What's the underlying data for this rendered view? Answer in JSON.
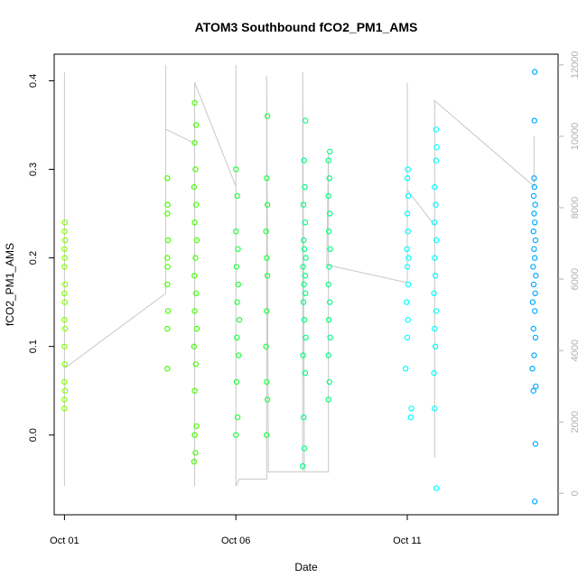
{
  "chart_data": {
    "type": "scatter",
    "title": "ATOM3 Southbound fCO2_PM1_AMS",
    "xlabel": "Date",
    "ylabel": "fCO2_PM1_AMS",
    "x_ticks": [
      {
        "label": "Oct 01",
        "day": 1
      },
      {
        "label": "Oct 06",
        "day": 6
      },
      {
        "label": "Oct 11",
        "day": 11
      }
    ],
    "xlim": [
      0.7,
      15.4
    ],
    "ylim": [
      -0.09,
      0.43
    ],
    "y_ticks": [
      0.0,
      0.1,
      0.2,
      0.3,
      0.4
    ],
    "y_tick_labels": [
      "0.0",
      "0.1",
      "0.2",
      "0.3",
      "0.4"
    ],
    "y2_ticks": [
      0,
      2000,
      4000,
      6000,
      8000,
      10000,
      12000
    ],
    "y2_tick_labels": [
      "0",
      "2000",
      "4000",
      "6000",
      "8000",
      "10000",
      "12000"
    ],
    "y2_lim": [
      -600,
      12300
    ],
    "y2_color": "#b0b0b0",
    "series": [
      {
        "color": "#80ff00",
        "values": [
          {
            "x": 1.0,
            "y": 0.03
          },
          {
            "x": 1.0,
            "y": 0.04
          },
          {
            "x": 1.02,
            "y": 0.05
          },
          {
            "x": 1.0,
            "y": 0.06
          },
          {
            "x": 1.01,
            "y": 0.08
          },
          {
            "x": 1.0,
            "y": 0.1
          },
          {
            "x": 1.02,
            "y": 0.12
          },
          {
            "x": 1.0,
            "y": 0.13
          },
          {
            "x": 1.01,
            "y": 0.15
          },
          {
            "x": 1.0,
            "y": 0.16
          },
          {
            "x": 1.02,
            "y": 0.17
          },
          {
            "x": 1.0,
            "y": 0.19
          },
          {
            "x": 1.01,
            "y": 0.2
          },
          {
            "x": 1.0,
            "y": 0.21
          },
          {
            "x": 1.02,
            "y": 0.22
          },
          {
            "x": 1.0,
            "y": 0.23
          },
          {
            "x": 1.01,
            "y": 0.24
          }
        ]
      },
      {
        "color": "#44ff00",
        "values": [
          {
            "x": 4.0,
            "y": 0.075
          },
          {
            "x": 4.0,
            "y": 0.12
          },
          {
            "x": 4.02,
            "y": 0.14
          },
          {
            "x": 4.0,
            "y": 0.17
          },
          {
            "x": 4.01,
            "y": 0.19
          },
          {
            "x": 4.0,
            "y": 0.2
          },
          {
            "x": 4.02,
            "y": 0.22
          },
          {
            "x": 4.0,
            "y": 0.25
          },
          {
            "x": 4.01,
            "y": 0.26
          },
          {
            "x": 4.0,
            "y": 0.29
          },
          {
            "x": 4.78,
            "y": -0.03
          },
          {
            "x": 4.82,
            "y": -0.02
          },
          {
            "x": 4.8,
            "y": 0.0
          },
          {
            "x": 4.85,
            "y": 0.01
          },
          {
            "x": 4.8,
            "y": 0.05
          },
          {
            "x": 4.83,
            "y": 0.08
          },
          {
            "x": 4.78,
            "y": 0.1
          },
          {
            "x": 4.86,
            "y": 0.12
          },
          {
            "x": 4.8,
            "y": 0.14
          },
          {
            "x": 4.84,
            "y": 0.16
          },
          {
            "x": 4.79,
            "y": 0.18
          },
          {
            "x": 4.82,
            "y": 0.2
          },
          {
            "x": 4.86,
            "y": 0.22
          },
          {
            "x": 4.8,
            "y": 0.24
          },
          {
            "x": 4.84,
            "y": 0.26
          },
          {
            "x": 4.78,
            "y": 0.28
          },
          {
            "x": 4.82,
            "y": 0.3
          },
          {
            "x": 4.8,
            "y": 0.33
          },
          {
            "x": 4.84,
            "y": 0.35
          },
          {
            "x": 4.8,
            "y": 0.375
          }
        ]
      },
      {
        "color": "#20ff40",
        "values": [
          {
            "x": 6.0,
            "y": 0.0
          },
          {
            "x": 6.05,
            "y": 0.02
          },
          {
            "x": 6.02,
            "y": 0.06
          },
          {
            "x": 6.08,
            "y": 0.09
          },
          {
            "x": 6.03,
            "y": 0.11
          },
          {
            "x": 6.1,
            "y": 0.13
          },
          {
            "x": 6.04,
            "y": 0.15
          },
          {
            "x": 6.07,
            "y": 0.17
          },
          {
            "x": 6.02,
            "y": 0.19
          },
          {
            "x": 6.06,
            "y": 0.21
          },
          {
            "x": 6.0,
            "y": 0.23
          },
          {
            "x": 6.04,
            "y": 0.27
          },
          {
            "x": 6.0,
            "y": 0.3
          },
          {
            "x": 6.9,
            "y": 0.0
          },
          {
            "x": 6.92,
            "y": 0.04
          },
          {
            "x": 6.9,
            "y": 0.06
          },
          {
            "x": 6.88,
            "y": 0.1
          },
          {
            "x": 6.9,
            "y": 0.14
          },
          {
            "x": 6.92,
            "y": 0.18
          },
          {
            "x": 6.9,
            "y": 0.2
          },
          {
            "x": 6.88,
            "y": 0.23
          },
          {
            "x": 6.92,
            "y": 0.26
          },
          {
            "x": 6.9,
            "y": 0.29
          },
          {
            "x": 6.92,
            "y": 0.36
          }
        ]
      },
      {
        "color": "#00ff80",
        "values": [
          {
            "x": 7.95,
            "y": -0.035
          },
          {
            "x": 8.0,
            "y": -0.015
          },
          {
            "x": 7.98,
            "y": 0.02
          },
          {
            "x": 8.02,
            "y": 0.07
          },
          {
            "x": 7.96,
            "y": 0.09
          },
          {
            "x": 8.04,
            "y": 0.11
          },
          {
            "x": 8.0,
            "y": 0.13
          },
          {
            "x": 7.97,
            "y": 0.15
          },
          {
            "x": 8.03,
            "y": 0.16
          },
          {
            "x": 7.99,
            "y": 0.17
          },
          {
            "x": 8.02,
            "y": 0.18
          },
          {
            "x": 7.96,
            "y": 0.19
          },
          {
            "x": 8.04,
            "y": 0.2
          },
          {
            "x": 8.0,
            "y": 0.21
          },
          {
            "x": 7.98,
            "y": 0.22
          },
          {
            "x": 8.02,
            "y": 0.24
          },
          {
            "x": 7.97,
            "y": 0.26
          },
          {
            "x": 8.01,
            "y": 0.28
          },
          {
            "x": 7.99,
            "y": 0.31
          },
          {
            "x": 8.03,
            "y": 0.355
          },
          {
            "x": 8.7,
            "y": 0.04
          },
          {
            "x": 8.73,
            "y": 0.06
          },
          {
            "x": 8.7,
            "y": 0.09
          },
          {
            "x": 8.75,
            "y": 0.11
          },
          {
            "x": 8.71,
            "y": 0.13
          },
          {
            "x": 8.74,
            "y": 0.15
          },
          {
            "x": 8.7,
            "y": 0.17
          },
          {
            "x": 8.72,
            "y": 0.19
          },
          {
            "x": 8.75,
            "y": 0.21
          },
          {
            "x": 8.71,
            "y": 0.23
          },
          {
            "x": 8.74,
            "y": 0.25
          },
          {
            "x": 8.7,
            "y": 0.27
          },
          {
            "x": 8.73,
            "y": 0.29
          },
          {
            "x": 8.7,
            "y": 0.31
          },
          {
            "x": 8.74,
            "y": 0.32
          }
        ]
      },
      {
        "color": "#00ffff",
        "values": [
          {
            "x": 10.95,
            "y": 0.075
          },
          {
            "x": 11.1,
            "y": 0.02
          },
          {
            "x": 11.12,
            "y": 0.03
          },
          {
            "x": 11.0,
            "y": 0.11
          },
          {
            "x": 11.02,
            "y": 0.13
          },
          {
            "x": 10.98,
            "y": 0.15
          },
          {
            "x": 11.03,
            "y": 0.17
          },
          {
            "x": 11.0,
            "y": 0.19
          },
          {
            "x": 11.04,
            "y": 0.2
          },
          {
            "x": 10.99,
            "y": 0.21
          },
          {
            "x": 11.02,
            "y": 0.23
          },
          {
            "x": 11.0,
            "y": 0.25
          },
          {
            "x": 11.03,
            "y": 0.27
          },
          {
            "x": 11.0,
            "y": 0.29
          },
          {
            "x": 11.02,
            "y": 0.3
          },
          {
            "x": 11.85,
            "y": -0.06
          },
          {
            "x": 11.8,
            "y": 0.03
          },
          {
            "x": 11.78,
            "y": 0.07
          },
          {
            "x": 11.82,
            "y": 0.1
          },
          {
            "x": 11.8,
            "y": 0.12
          },
          {
            "x": 11.84,
            "y": 0.14
          },
          {
            "x": 11.78,
            "y": 0.16
          },
          {
            "x": 11.82,
            "y": 0.18
          },
          {
            "x": 11.8,
            "y": 0.2
          },
          {
            "x": 11.85,
            "y": 0.22
          },
          {
            "x": 11.79,
            "y": 0.24
          },
          {
            "x": 11.83,
            "y": 0.26
          },
          {
            "x": 11.8,
            "y": 0.28
          },
          {
            "x": 11.84,
            "y": 0.31
          },
          {
            "x": 11.86,
            "y": 0.325
          },
          {
            "x": 11.84,
            "y": 0.345
          }
        ]
      },
      {
        "color": "#00aaff",
        "values": [
          {
            "x": 14.72,
            "y": -0.075
          },
          {
            "x": 14.74,
            "y": -0.01
          },
          {
            "x": 14.68,
            "y": 0.05
          },
          {
            "x": 14.75,
            "y": 0.055
          },
          {
            "x": 14.65,
            "y": 0.075
          },
          {
            "x": 14.7,
            "y": 0.09
          },
          {
            "x": 14.74,
            "y": 0.11
          },
          {
            "x": 14.68,
            "y": 0.12
          },
          {
            "x": 14.72,
            "y": 0.14
          },
          {
            "x": 14.66,
            "y": 0.15
          },
          {
            "x": 14.73,
            "y": 0.16
          },
          {
            "x": 14.69,
            "y": 0.17
          },
          {
            "x": 14.75,
            "y": 0.18
          },
          {
            "x": 14.67,
            "y": 0.19
          },
          {
            "x": 14.72,
            "y": 0.2
          },
          {
            "x": 14.7,
            "y": 0.21
          },
          {
            "x": 14.74,
            "y": 0.22
          },
          {
            "x": 14.68,
            "y": 0.23
          },
          {
            "x": 14.72,
            "y": 0.24
          },
          {
            "x": 14.7,
            "y": 0.25
          },
          {
            "x": 14.73,
            "y": 0.26
          },
          {
            "x": 14.69,
            "y": 0.27
          },
          {
            "x": 14.71,
            "y": 0.28
          },
          {
            "x": 14.7,
            "y": 0.29
          },
          {
            "x": 14.71,
            "y": 0.355
          },
          {
            "x": 14.72,
            "y": 0.41
          }
        ]
      }
    ],
    "secondary_series": {
      "color": "#c8c8c8",
      "axis": "right",
      "values": [
        {
          "x": 1.0,
          "y": 200
        },
        {
          "x": 1.0,
          "y": 11800
        },
        {
          "x": 1.0,
          "y": 3500
        },
        {
          "x": 3.95,
          "y": 5600
        },
        {
          "x": 3.95,
          "y": 12000
        },
        {
          "x": 3.95,
          "y": 10200
        },
        {
          "x": 4.8,
          "y": 9800
        },
        {
          "x": 4.8,
          "y": 200
        },
        {
          "x": 4.8,
          "y": 11500
        },
        {
          "x": 6.0,
          "y": 8600
        },
        {
          "x": 6.0,
          "y": 12000
        },
        {
          "x": 6.0,
          "y": 200
        },
        {
          "x": 6.1,
          "y": 400
        },
        {
          "x": 6.9,
          "y": 400
        },
        {
          "x": 6.9,
          "y": 11700
        },
        {
          "x": 6.95,
          "y": 600
        },
        {
          "x": 7.95,
          "y": 600
        },
        {
          "x": 7.95,
          "y": 11800
        },
        {
          "x": 8.0,
          "y": 600
        },
        {
          "x": 8.7,
          "y": 600
        },
        {
          "x": 8.7,
          "y": 9500
        },
        {
          "x": 8.65,
          "y": 6400
        },
        {
          "x": 11.0,
          "y": 5900
        },
        {
          "x": 11.0,
          "y": 11500
        },
        {
          "x": 11.0,
          "y": 8500
        },
        {
          "x": 11.8,
          "y": 7500
        },
        {
          "x": 11.8,
          "y": 1000
        },
        {
          "x": 11.8,
          "y": 11000
        },
        {
          "x": 14.7,
          "y": 8600
        },
        {
          "x": 14.7,
          "y": 10000
        },
        {
          "x": 14.7,
          "y": 8700
        }
      ]
    }
  }
}
